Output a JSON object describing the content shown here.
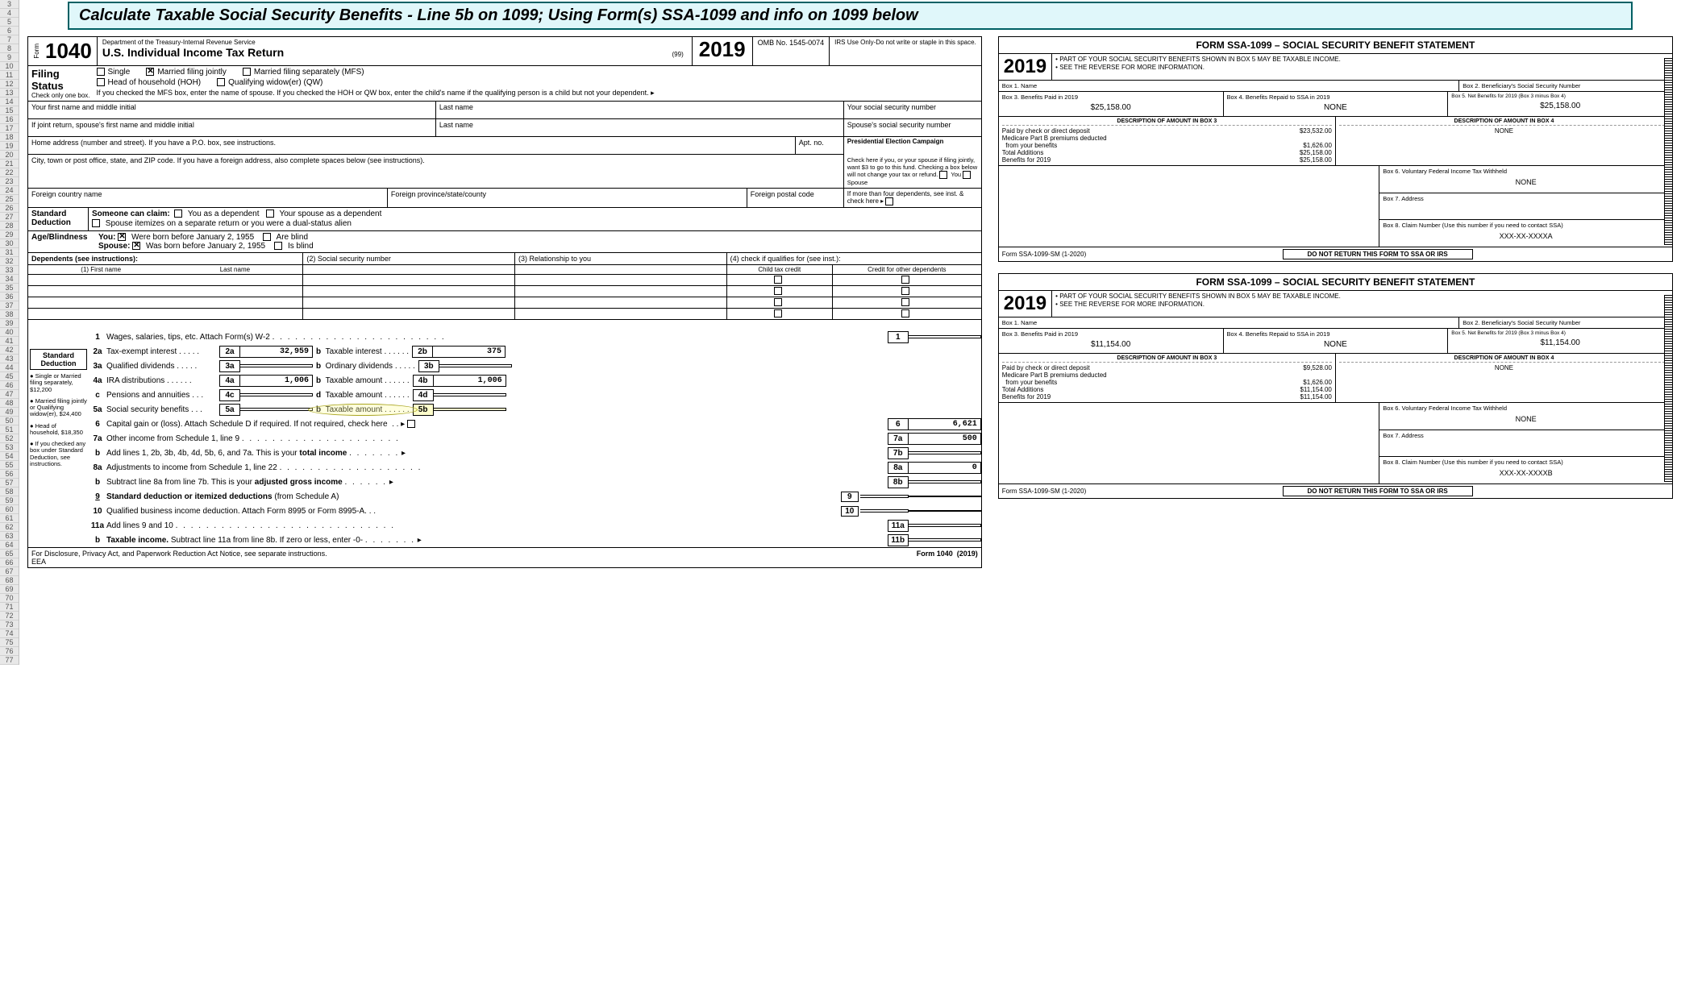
{
  "title": "Calculate Taxable Social Security Benefits -  Line 5b on 1099; Using Form(s) SSA-1099 and info on 1099 below",
  "row_start": 3,
  "row_end": 77,
  "form1040": {
    "form_label": "Form",
    "form_num": "1040",
    "dept": "Department of the Treasury-Internal Revenue Service",
    "title": "U.S. Individual Income Tax Return",
    "code99": "(99)",
    "year": "2019",
    "omb": "OMB No. 1545-0074",
    "irs_only": "IRS Use Only-Do not write or staple in this space.",
    "filing": {
      "label1": "Filing",
      "label2": "Status",
      "check_note": "Check only one box.",
      "single": "Single",
      "mfj": "Married filing jointly",
      "mfs": "Married filing separately (MFS)",
      "hoh": "Head of household (HOH)",
      "qw": "Qualifying widow(er) (QW)",
      "mfj_checked": true,
      "note": "If you checked the MFS box, enter the name of spouse. If you checked the HOH or QW box, enter the child's name if the qualifying person is a child but not your dependent. ▸"
    },
    "names": {
      "fn": "Your first name and middle initial",
      "ln": "Last name",
      "ssn": "Your social security number",
      "sp_fn": "If joint return, spouse's first name and middle initial",
      "sp_ln": "Last name",
      "sp_ssn": "Spouse's social security number"
    },
    "addr": {
      "home": "Home address (number and street). If you have a P.O. box, see instructions.",
      "apt": "Apt. no.",
      "pres_title": "Presidential Election Campaign",
      "pres_body": "Check here if you, or your spouse if filing jointly, want $3 to go to this fund. Checking a box below will not change your tax or refund.",
      "pres_you": "You",
      "pres_sp": "Spouse",
      "city": "City, town or post office, state, and ZIP code. If you have a foreign address, also complete spaces below (see instructions).",
      "fc": "Foreign country name",
      "fp": "Foreign province/state/county",
      "fz": "Foreign postal code",
      "more4": "If more than four dependents, see inst. & check here ▸"
    },
    "std": {
      "label": "Standard Deduction",
      "claim": "Someone can claim:",
      "you_dep": "You as a dependent",
      "sp_dep": "Your spouse as a dependent",
      "itemize": "Spouse itemizes on a separate return or you were a dual-status alien",
      "ab_label": "Age/Blindness",
      "you": "You:",
      "you_born": "Were born before January 2, 1955",
      "you_blind": "Are blind",
      "sp": "Spouse:",
      "sp_born": "Was born before January 2, 1955",
      "sp_blind": "Is blind",
      "you_born_chk": true,
      "sp_born_chk": true
    },
    "dep": {
      "hdr": "Dependents (see instructions):",
      "c1a": "(1) First name",
      "c1b": "Last name",
      "c2": "(2) Social security number",
      "c3": "(3) Relationship to you",
      "c4": "(4) check if qualifies for (see inst.):",
      "c4a": "Child tax credit",
      "c4b": "Credit for other dependents"
    },
    "side": {
      "title": "Standard Deduction",
      "b1": "Single or Married filing separately, $12,200",
      "b2": "Married filing jointly or Qualifying widow(er), $24,400",
      "b3": "Head of household, $18,350",
      "b4": "If you checked any box under Standard Deduction, see instructions."
    },
    "lines": {
      "l1": "Wages, salaries, tips, etc. Attach Form(s) W-2",
      "l2a": "Tax-exempt interest",
      "l2a_v": "32,959",
      "l2b": "Taxable interest",
      "l2b_v": "375",
      "l3a": "Qualified dividends",
      "l3b": "Ordinary dividends",
      "l4a": "IRA distributions",
      "l4a_v": "1,006",
      "l4b": "Taxable amount",
      "l4b_v": "1,006",
      "l4c": "Pensions and annuities",
      "l4d": "Taxable amount",
      "l5a": "Social security benefits",
      "l5b": "Taxable amount",
      "l6": "Capital gain or (loss). Attach Schedule D if required. If not required, check here",
      "l6_v": "6,621",
      "l7a": "Other income from Schedule 1, line 9",
      "l7a_v": "500",
      "l7b_pre": "Add lines 1, 2b, 3b, 4b, 4d, 5b, 6, and 7a. This is your ",
      "l7b_bold": "total income",
      "l8a": "Adjustments to income from Schedule 1, line 22",
      "l8a_v": "0",
      "l8b_pre": "Subtract line 8a from line 7b. This is your ",
      "l8b_bold": "adjusted gross income",
      "l9_pre": "Standard deduction or itemized deductions ",
      "l9_suf": "(from Schedule A)",
      "l10": "Qualified business income deduction. Attach Form 8995 or Form 8995-A.",
      "l11a": "Add lines 9 and 10",
      "l11b_pre": "Taxable income. ",
      "l11b_suf": "Subtract line 11a from line 8b. If zero or less, enter -0-"
    },
    "footer_l": "For Disclosure, Privacy Act, and Paperwork Reduction Act Notice, see separate instructions.",
    "footer_eea": "EEA",
    "footer_r": "Form 1040  (2019)"
  },
  "ssa1": {
    "title": "FORM SSA-1099 – SOCIAL SECURITY BENEFIT STATEMENT",
    "year": "2019",
    "hdr1": "PART OF YOUR SOCIAL SECURITY BENEFITS SHOWN IN BOX 5 MAY BE TAXABLE INCOME.",
    "hdr2": "SEE THE REVERSE FOR MORE INFORMATION.",
    "box1": "Box 1. Name",
    "box2": "Box 2. Beneficiary's Social Security Number",
    "box3": "Box 3. Benefits Paid in 2019",
    "box3_v": "$25,158.00",
    "box4": "Box 4. Benefits Repaid to SSA in 2019",
    "box4_v": "NONE",
    "box5": "Box 5. Net Benefits for 2019 (Box 3 minus Box 4)",
    "box5_v": "$25,158.00",
    "desc3": "DESCRIPTION OF AMOUNT IN BOX 3",
    "desc4": "DESCRIPTION OF AMOUNT IN BOX 4",
    "d3_1": "Paid by check or direct deposit",
    "d3_1v": "$23,532.00",
    "d3_2": "Medicare Part B premiums deducted",
    "d3_3": "from your benefits",
    "d3_3v": "$1,626.00",
    "d3_4": "Total Additions",
    "d3_4v": "$25,158.00",
    "d3_5": "Benefits for 2019",
    "d3_5v": "$25,158.00",
    "d4_none": "NONE",
    "box6": "Box 6. Voluntary Federal Income Tax Withheld",
    "box6_v": "NONE",
    "box7": "Box 7. Address",
    "box8": "Box 8. Claim Number (Use this number if you need to contact SSA)",
    "box8_v": "XXX-XX-XXXXA",
    "foot_l": "Form SSA-1099-SM (1-2020)",
    "foot_m": "DO NOT RETURN THIS FORM TO SSA OR IRS"
  },
  "ssa2": {
    "title": "FORM SSA-1099 – SOCIAL SECURITY BENEFIT STATEMENT",
    "year": "2019",
    "hdr1": "PART OF YOUR SOCIAL SECURITY BENEFITS SHOWN IN BOX 5 MAY BE TAXABLE INCOME.",
    "hdr2": "SEE THE REVERSE FOR MORE INFORMATION.",
    "box1": "Box 1. Name",
    "box2": "Box 2. Beneficiary's Social Security Number",
    "box3": "Box 3. Benefits Paid in 2019",
    "box3_v": "$11,154.00",
    "box4": "Box 4. Benefits Repaid to SSA in 2019",
    "box4_v": "NONE",
    "box5": "Box 5. Net Benefits for 2019 (Box 3 minus Box 4)",
    "box5_v": "$11,154.00",
    "desc3": "DESCRIPTION OF AMOUNT IN BOX 3",
    "desc4": "DESCRIPTION OF AMOUNT IN BOX 4",
    "d3_1": "Paid by check or direct deposit",
    "d3_1v": "$9,528.00",
    "d3_2": "Medicare Part B premiums deducted",
    "d3_3": "from your benefits",
    "d3_3v": "$1,626.00",
    "d3_4": "Total Additions",
    "d3_4v": "$11,154.00",
    "d3_5": "Benefits for 2019",
    "d3_5v": "$11,154.00",
    "d4_none": "NONE",
    "box6": "Box 6. Voluntary Federal Income Tax Withheld",
    "box6_v": "NONE",
    "box7": "Box 7. Address",
    "box8": "Box 8. Claim Number (Use this number if you need to contact SSA)",
    "box8_v": "XXX-XX-XXXXB",
    "foot_l": "Form SSA-1099-SM (1-2020)",
    "foot_m": "DO NOT RETURN THIS FORM TO SSA OR IRS"
  }
}
